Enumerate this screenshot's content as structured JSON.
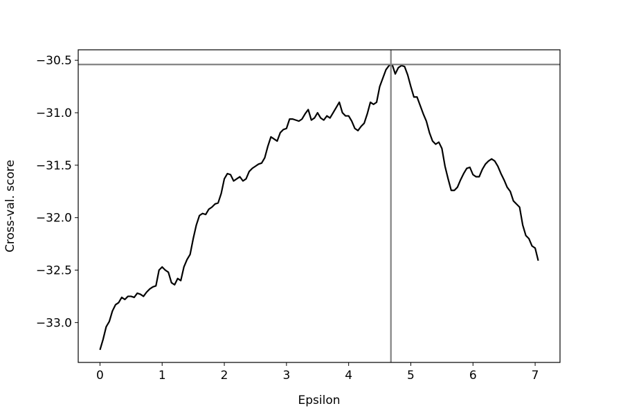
{
  "chart_data": {
    "type": "line",
    "xlabel": "Epsilon",
    "ylabel": "Cross-val. score",
    "x": [
      0,
      0.05,
      0.1,
      0.15,
      0.2,
      0.25,
      0.3,
      0.35,
      0.4,
      0.45,
      0.5,
      0.55,
      0.6,
      0.65,
      0.7,
      0.75,
      0.8,
      0.85,
      0.9,
      0.95,
      1,
      1.05,
      1.1,
      1.15,
      1.2,
      1.25,
      1.3,
      1.35,
      1.4,
      1.45,
      1.5,
      1.55,
      1.6,
      1.65,
      1.7,
      1.75,
      1.8,
      1.85,
      1.9,
      1.95,
      2,
      2.05,
      2.1,
      2.15,
      2.2,
      2.25,
      2.3,
      2.35,
      2.4,
      2.45,
      2.5,
      2.55,
      2.6,
      2.65,
      2.7,
      2.75,
      2.8,
      2.85,
      2.9,
      2.95,
      3,
      3.05,
      3.1,
      3.15,
      3.2,
      3.25,
      3.3,
      3.35,
      3.4,
      3.45,
      3.5,
      3.55,
      3.6,
      3.65,
      3.7,
      3.75,
      3.8,
      3.85,
      3.9,
      3.95,
      4,
      4.05,
      4.1,
      4.15,
      4.2,
      4.25,
      4.3,
      4.35,
      4.4,
      4.45,
      4.5,
      4.55,
      4.6,
      4.65,
      4.7,
      4.75,
      4.8,
      4.85,
      4.9,
      4.95,
      5,
      5.05,
      5.1,
      5.15,
      5.2,
      5.25,
      5.3,
      5.35,
      5.4,
      5.45,
      5.5,
      5.55,
      5.6,
      5.65,
      5.7,
      5.75,
      5.8,
      5.85,
      5.9,
      5.95,
      6,
      6.05,
      6.1,
      6.15,
      6.2,
      6.25,
      6.3,
      6.35,
      6.4,
      6.45,
      6.5,
      6.55,
      6.6,
      6.65,
      6.7,
      6.75,
      6.8,
      6.85,
      6.9,
      6.95,
      7,
      7.05
    ],
    "values": [
      -33.26,
      -33.16,
      -33.04,
      -32.99,
      -32.89,
      -32.83,
      -32.81,
      -32.76,
      -32.78,
      -32.75,
      -32.75,
      -32.76,
      -32.72,
      -32.73,
      -32.75,
      -32.71,
      -32.68,
      -32.66,
      -32.65,
      -32.5,
      -32.47,
      -32.5,
      -32.52,
      -32.62,
      -32.64,
      -32.58,
      -32.6,
      -32.47,
      -32.4,
      -32.35,
      -32.2,
      -32.07,
      -31.98,
      -31.96,
      -31.97,
      -31.92,
      -31.9,
      -31.87,
      -31.86,
      -31.77,
      -31.63,
      -31.58,
      -31.59,
      -31.65,
      -31.63,
      -31.61,
      -31.65,
      -31.63,
      -31.56,
      -31.53,
      -31.51,
      -31.49,
      -31.48,
      -31.43,
      -31.32,
      -31.23,
      -31.25,
      -31.27,
      -31.19,
      -31.16,
      -31.15,
      -31.06,
      -31.06,
      -31.07,
      -31.08,
      -31.06,
      -31.01,
      -30.97,
      -31.07,
      -31.05,
      -31.0,
      -31.05,
      -31.07,
      -31.03,
      -31.05,
      -31.0,
      -30.95,
      -30.9,
      -31.0,
      -31.03,
      -31.03,
      -31.08,
      -31.15,
      -31.17,
      -31.13,
      -31.1,
      -31.01,
      -30.9,
      -30.92,
      -30.9,
      -30.75,
      -30.67,
      -30.59,
      -30.55,
      -30.54,
      -30.63,
      -30.57,
      -30.55,
      -30.56,
      -30.64,
      -30.75,
      -30.85,
      -30.85,
      -30.93,
      -31.01,
      -31.08,
      -31.19,
      -31.27,
      -31.3,
      -31.28,
      -31.34,
      -31.51,
      -31.63,
      -31.74,
      -31.74,
      -31.71,
      -31.64,
      -31.58,
      -31.53,
      -31.52,
      -31.59,
      -31.61,
      -31.61,
      -31.54,
      -31.49,
      -31.46,
      -31.44,
      -31.46,
      -31.51,
      -31.58,
      -31.64,
      -31.71,
      -31.75,
      -31.84,
      -31.87,
      -31.9,
      -32.07,
      -32.17,
      -32.2,
      -32.27,
      -32.29,
      -32.41
    ],
    "color": "#000000",
    "hline": {
      "value": -30.54,
      "color": "#808080"
    },
    "vline": {
      "value": 4.68,
      "color": "#808080"
    },
    "xlim": [
      -0.35,
      7.4
    ],
    "ylim": [
      -33.38,
      -30.4
    ],
    "xticks": [
      0,
      1,
      2,
      3,
      4,
      5,
      6,
      7
    ],
    "yticks": [
      {
        "value": -33,
        "label": "−33.0"
      },
      {
        "value": -32.5,
        "label": "−32.5"
      },
      {
        "value": -32,
        "label": "−32.0"
      },
      {
        "value": -31.5,
        "label": "−31.5"
      },
      {
        "value": -31,
        "label": "−31.0"
      },
      {
        "value": -30.5,
        "label": "−30.5"
      }
    ]
  }
}
